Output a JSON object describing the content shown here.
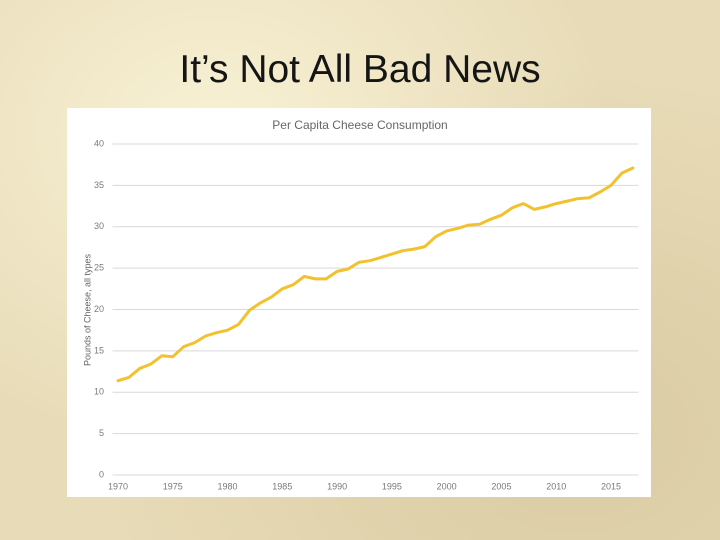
{
  "slide": {
    "title": "It’s Not All Bad News"
  },
  "chart_data": {
    "type": "line",
    "title": "Per Capita Cheese Consumption",
    "y_label": "Pounds of Cheese, all types",
    "x": [
      1970,
      1971,
      1972,
      1973,
      1974,
      1975,
      1976,
      1977,
      1978,
      1979,
      1980,
      1981,
      1982,
      1983,
      1984,
      1985,
      1986,
      1987,
      1988,
      1989,
      1990,
      1991,
      1992,
      1993,
      1994,
      1995,
      1996,
      1997,
      1998,
      1999,
      2000,
      2001,
      2002,
      2003,
      2004,
      2005,
      2006,
      2007,
      2008,
      2009,
      2010,
      2011,
      2012,
      2013,
      2014,
      2015,
      2016,
      2017
    ],
    "values": [
      11.4,
      11.8,
      12.9,
      13.4,
      14.4,
      14.3,
      15.5,
      16.0,
      16.8,
      17.2,
      17.5,
      18.2,
      19.9,
      20.8,
      21.5,
      22.5,
      23.0,
      24.0,
      23.7,
      23.7,
      24.6,
      24.9,
      25.7,
      25.9,
      26.3,
      26.7,
      27.1,
      27.3,
      27.6,
      28.8,
      29.5,
      29.8,
      30.2,
      30.3,
      30.9,
      31.4,
      32.3,
      32.8,
      32.1,
      32.4,
      32.8,
      33.1,
      33.4,
      33.5,
      34.2,
      35.0,
      36.5,
      37.1
    ],
    "color": "#f2c12e",
    "xlim": [
      1969.5,
      2017.5
    ],
    "xticks": [
      1970,
      1975,
      1980,
      1985,
      1990,
      1995,
      2000,
      2005,
      2010,
      2015
    ],
    "ylim": [
      0,
      40
    ],
    "yticks": [
      0,
      5,
      10,
      15,
      20,
      25,
      30,
      35,
      40
    ],
    "grid": true
  }
}
